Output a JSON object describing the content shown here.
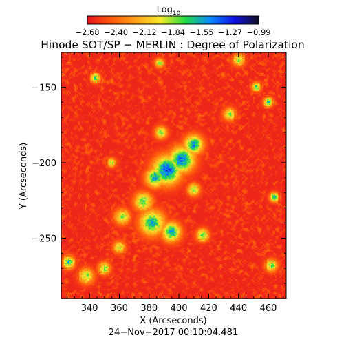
{
  "chart_data": {
    "type": "heatmap",
    "title": "Hinode SOT/SP − MERLIN : Degree of Polarization",
    "xlabel": "X (Arcseconds)",
    "ylabel": "Y (Arcseconds)",
    "date_label": "24−Nov−2017 00:10:04.481",
    "xlim": [
      321,
      472
    ],
    "ylim": [
      -290,
      -127
    ],
    "x_ticks": [
      340,
      360,
      380,
      400,
      420,
      440,
      460
    ],
    "y_ticks": [
      -150,
      -200,
      -250
    ],
    "x_tick_labels": [
      "340",
      "360",
      "380",
      "400",
      "420",
      "440",
      "460"
    ],
    "y_tick_labels": [
      "−150",
      "−200",
      "−250"
    ],
    "colorbar": {
      "label_main": "Log",
      "label_sub": "10",
      "range": [
        -2.68,
        -0.99
      ],
      "ticks": [
        "−2.68",
        "−2.40",
        "−2.12",
        "−1.84",
        "−1.55",
        "−1.27",
        "−0.99"
      ],
      "colors": [
        "#e8141e",
        "#ff5a0a",
        "#ffa41a",
        "#f6ea2a",
        "#22dc44",
        "#0a8cff",
        "#1010e6",
        "#0e0e20"
      ]
    },
    "features": [
      {
        "x": 392,
        "y": -205,
        "value": -1.35,
        "spread": 9
      },
      {
        "x": 402,
        "y": -198,
        "value": -1.4,
        "spread": 8
      },
      {
        "x": 410,
        "y": -188,
        "value": -1.5,
        "spread": 6
      },
      {
        "x": 384,
        "y": -210,
        "value": -1.55,
        "spread": 6
      },
      {
        "x": 382,
        "y": -240,
        "value": -1.6,
        "spread": 8
      },
      {
        "x": 395,
        "y": -246,
        "value": -1.55,
        "spread": 6
      },
      {
        "x": 376,
        "y": -226,
        "value": -1.75,
        "spread": 6
      },
      {
        "x": 362,
        "y": -236,
        "value": -1.85,
        "spread": 5
      },
      {
        "x": 388,
        "y": -180,
        "value": -1.8,
        "spread": 4
      },
      {
        "x": 344,
        "y": -144,
        "value": -1.7,
        "spread": 3
      },
      {
        "x": 326,
        "y": -266,
        "value": -1.65,
        "spread": 4
      },
      {
        "x": 338,
        "y": -275,
        "value": -1.85,
        "spread": 5
      },
      {
        "x": 350,
        "y": -270,
        "value": -1.8,
        "spread": 4
      },
      {
        "x": 360,
        "y": -256,
        "value": -1.95,
        "spread": 4
      },
      {
        "x": 387,
        "y": -134,
        "value": -1.8,
        "spread": 3
      },
      {
        "x": 440,
        "y": -132,
        "value": -1.85,
        "spread": 4
      },
      {
        "x": 452,
        "y": -150,
        "value": -1.75,
        "spread": 3
      },
      {
        "x": 460,
        "y": -160,
        "value": -1.6,
        "spread": 3
      },
      {
        "x": 434,
        "y": -168,
        "value": -1.9,
        "spread": 4
      },
      {
        "x": 464,
        "y": -223,
        "value": -1.6,
        "spread": 3
      },
      {
        "x": 462,
        "y": -268,
        "value": -1.8,
        "spread": 4
      },
      {
        "x": 416,
        "y": -248,
        "value": -1.75,
        "spread": 4
      },
      {
        "x": 355,
        "y": -200,
        "value": -1.9,
        "spread": 3
      },
      {
        "x": 410,
        "y": -218,
        "value": -1.8,
        "spread": 4
      }
    ]
  }
}
